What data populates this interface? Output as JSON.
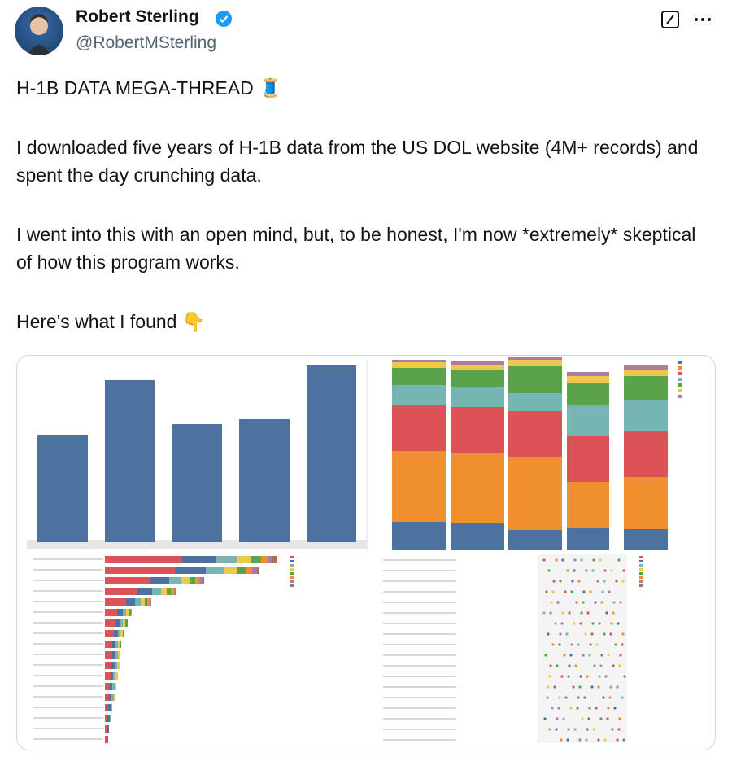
{
  "author": {
    "name": "Robert Sterling",
    "handle": "@RobertMSterling"
  },
  "post": {
    "paragraphs": [
      "H-1B DATA MEGA-THREAD 🧵",
      "I downloaded five years of H-1B data from the US DOL website (4M+ records) and spent the day crunching data.",
      "I went into this with an open mind, but, to be honest, I'm now *extremely* skeptical of how this program works.",
      "Here's what I found 👇"
    ]
  }
}
